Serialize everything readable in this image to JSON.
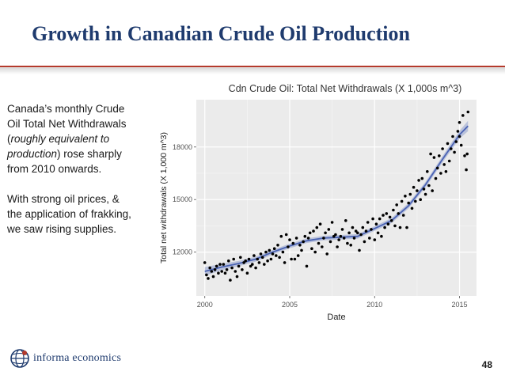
{
  "slide": {
    "title": "Growth in Canadian Crude Oil Production",
    "page_number": "48"
  },
  "sidebar": {
    "p1_before": "Canada’s monthly Crude Oil Total Net Withdrawals (",
    "p1_italic": "roughly equivalent to production",
    "p1_after": ") rose sharply from 2010 onwards.",
    "p2": "With strong oil prices, & the application of frakking, we saw rising supplies."
  },
  "logo": {
    "text": "informa economics",
    "icon": "globe-icon"
  },
  "colors": {
    "title": "#1f3b6e",
    "rule": "#b43a2c",
    "panel": "#ebebeb",
    "grid": "#ffffff",
    "points": "#000000",
    "trend": "#4a63b4",
    "band": "#aab4d6"
  },
  "chart_data": {
    "type": "scatter",
    "title": "Cdn Crude Oil: Total Net Withdrawals (X 1,000s m^3)",
    "xlabel": "Date",
    "ylabel": "Total net withdrawals (X 1,000 m^3)",
    "xlim": [
      1999.5,
      2016.0
    ],
    "ylim": [
      9500,
      20700
    ],
    "x_ticks": [
      2000,
      2005,
      2010,
      2015
    ],
    "y_ticks": [
      12000,
      15000,
      18000
    ],
    "grid": true,
    "legend": "none",
    "trend": {
      "x": [
        2000,
        2001,
        2002,
        2003,
        2004,
        2005,
        2006,
        2007,
        2008,
        2009,
        2010,
        2011,
        2012,
        2013,
        2014,
        2015,
        2015.5
      ],
      "y": [
        10900,
        11150,
        11350,
        11600,
        12000,
        12350,
        12650,
        12800,
        12850,
        12900,
        13350,
        13800,
        14650,
        15850,
        17300,
        18700,
        19200
      ],
      "band": [
        250,
        180,
        150,
        140,
        130,
        130,
        130,
        130,
        130,
        130,
        130,
        140,
        150,
        160,
        180,
        220,
        300
      ]
    },
    "points": [
      [
        2000.0,
        11400
      ],
      [
        2000.1,
        10700
      ],
      [
        2000.2,
        10500
      ],
      [
        2000.3,
        11100
      ],
      [
        2000.4,
        10900
      ],
      [
        2000.5,
        10600
      ],
      [
        2000.6,
        11000
      ],
      [
        2000.7,
        11200
      ],
      [
        2000.8,
        10800
      ],
      [
        2000.9,
        11300
      ],
      [
        2001.0,
        10900
      ],
      [
        2001.1,
        11300
      ],
      [
        2001.2,
        10800
      ],
      [
        2001.3,
        11000
      ],
      [
        2001.4,
        11500
      ],
      [
        2001.5,
        10400
      ],
      [
        2001.6,
        11100
      ],
      [
        2001.7,
        11600
      ],
      [
        2001.8,
        10900
      ],
      [
        2001.9,
        10600
      ],
      [
        2002.0,
        11200
      ],
      [
        2002.1,
        11700
      ],
      [
        2002.2,
        11000
      ],
      [
        2002.3,
        11400
      ],
      [
        2002.4,
        11500
      ],
      [
        2002.5,
        10800
      ],
      [
        2002.6,
        11600
      ],
      [
        2002.7,
        11200
      ],
      [
        2002.8,
        11300
      ],
      [
        2002.9,
        11800
      ],
      [
        2003.0,
        11100
      ],
      [
        2003.1,
        11600
      ],
      [
        2003.2,
        11400
      ],
      [
        2003.3,
        11900
      ],
      [
        2003.4,
        11700
      ],
      [
        2003.5,
        11300
      ],
      [
        2003.6,
        12000
      ],
      [
        2003.7,
        11500
      ],
      [
        2003.8,
        12100
      ],
      [
        2003.9,
        11600
      ],
      [
        2004.0,
        11900
      ],
      [
        2004.1,
        12200
      ],
      [
        2004.2,
        11800
      ],
      [
        2004.3,
        12400
      ],
      [
        2004.4,
        11700
      ],
      [
        2004.5,
        12900
      ],
      [
        2004.6,
        12000
      ],
      [
        2004.7,
        11400
      ],
      [
        2004.8,
        13000
      ],
      [
        2004.9,
        12300
      ],
      [
        2005.0,
        12700
      ],
      [
        2005.1,
        11600
      ],
      [
        2005.2,
        12500
      ],
      [
        2005.3,
        11600
      ],
      [
        2005.4,
        12800
      ],
      [
        2005.5,
        11800
      ],
      [
        2005.6,
        12400
      ],
      [
        2005.7,
        12100
      ],
      [
        2005.8,
        12600
      ],
      [
        2005.9,
        12900
      ],
      [
        2006.0,
        11200
      ],
      [
        2006.1,
        12800
      ],
      [
        2006.2,
        13100
      ],
      [
        2006.3,
        12200
      ],
      [
        2006.4,
        13200
      ],
      [
        2006.5,
        12000
      ],
      [
        2006.6,
        13400
      ],
      [
        2006.7,
        12500
      ],
      [
        2006.8,
        13600
      ],
      [
        2006.9,
        12300
      ],
      [
        2007.0,
        12800
      ],
      [
        2007.1,
        13100
      ],
      [
        2007.2,
        11900
      ],
      [
        2007.3,
        13300
      ],
      [
        2007.4,
        12600
      ],
      [
        2007.5,
        13700
      ],
      [
        2007.6,
        12900
      ],
      [
        2007.7,
        13000
      ],
      [
        2007.8,
        12300
      ],
      [
        2007.9,
        12700
      ],
      [
        2008.0,
        12900
      ],
      [
        2008.1,
        13300
      ],
      [
        2008.2,
        12800
      ],
      [
        2008.3,
        13800
      ],
      [
        2008.4,
        12500
      ],
      [
        2008.5,
        13100
      ],
      [
        2008.6,
        12400
      ],
      [
        2008.7,
        13400
      ],
      [
        2008.8,
        12800
      ],
      [
        2008.9,
        13200
      ],
      [
        2009.0,
        13100
      ],
      [
        2009.1,
        12100
      ],
      [
        2009.2,
        13000
      ],
      [
        2009.3,
        13400
      ],
      [
        2009.4,
        12600
      ],
      [
        2009.5,
        13200
      ],
      [
        2009.6,
        13700
      ],
      [
        2009.7,
        12800
      ],
      [
        2009.8,
        13300
      ],
      [
        2009.9,
        13900
      ],
      [
        2010.0,
        12700
      ],
      [
        2010.1,
        13600
      ],
      [
        2010.2,
        13100
      ],
      [
        2010.3,
        13900
      ],
      [
        2010.4,
        12900
      ],
      [
        2010.5,
        14100
      ],
      [
        2010.6,
        13400
      ],
      [
        2010.7,
        14200
      ],
      [
        2010.8,
        13600
      ],
      [
        2010.9,
        14000
      ],
      [
        2011.0,
        13800
      ],
      [
        2011.1,
        14400
      ],
      [
        2011.2,
        13500
      ],
      [
        2011.3,
        14700
      ],
      [
        2011.4,
        14200
      ],
      [
        2011.5,
        13400
      ],
      [
        2011.6,
        14900
      ],
      [
        2011.7,
        14100
      ],
      [
        2011.8,
        15200
      ],
      [
        2011.9,
        13400
      ],
      [
        2012.0,
        14800
      ],
      [
        2012.1,
        15300
      ],
      [
        2012.2,
        14500
      ],
      [
        2012.3,
        15700
      ],
      [
        2012.4,
        14900
      ],
      [
        2012.5,
        15500
      ],
      [
        2012.6,
        16100
      ],
      [
        2012.7,
        15000
      ],
      [
        2012.8,
        16200
      ],
      [
        2012.9,
        15600
      ],
      [
        2013.0,
        15300
      ],
      [
        2013.1,
        16600
      ],
      [
        2013.2,
        15800
      ],
      [
        2013.3,
        17600
      ],
      [
        2013.4,
        15500
      ],
      [
        2013.5,
        17400
      ],
      [
        2013.6,
        16200
      ],
      [
        2013.7,
        16800
      ],
      [
        2013.8,
        17500
      ],
      [
        2013.9,
        16500
      ],
      [
        2014.0,
        17900
      ],
      [
        2014.1,
        17000
      ],
      [
        2014.2,
        16600
      ],
      [
        2014.3,
        18200
      ],
      [
        2014.4,
        17200
      ],
      [
        2014.5,
        17900
      ],
      [
        2014.6,
        18600
      ],
      [
        2014.7,
        17700
      ],
      [
        2014.8,
        18300
      ],
      [
        2014.9,
        18900
      ],
      [
        2015.0,
        19400
      ],
      [
        2015.1,
        18100
      ],
      [
        2015.2,
        19800
      ],
      [
        2015.3,
        17500
      ],
      [
        2015.4,
        16700
      ],
      [
        2015.5,
        20000
      ],
      [
        2015.45,
        17600
      ],
      [
        2015.0,
        18600
      ]
    ]
  }
}
